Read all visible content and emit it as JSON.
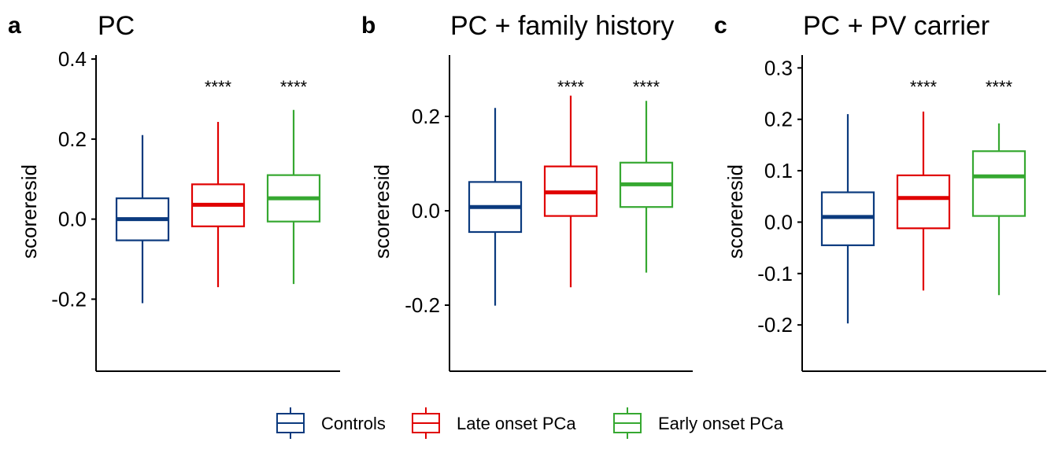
{
  "figure": {
    "colors": {
      "controls": "#0b3a7e",
      "late": "#e00000",
      "early": "#36a831",
      "axis": "#000000"
    },
    "legend": {
      "position": "bottom",
      "items": [
        {
          "label": "Controls",
          "color": "#0b3a7e"
        },
        {
          "label": "Late onset PCa",
          "color": "#e00000"
        },
        {
          "label": "Early onset PCa",
          "color": "#36a831"
        }
      ]
    }
  },
  "chart_data": [
    {
      "type": "box",
      "panel_label": "a",
      "title": "PC",
      "xlabel": "",
      "ylabel": "scoreresid",
      "ylim": [
        -0.38,
        0.41
      ],
      "yticks": [
        {
          "value": -0.2,
          "label": "-0.2"
        },
        {
          "value": 0.0,
          "label": "0.0"
        },
        {
          "value": 0.2,
          "label": "0.2"
        },
        {
          "value": 0.4,
          "label": "0.4"
        }
      ],
      "series": [
        {
          "name": "Controls",
          "min": -0.21,
          "q1": -0.053,
          "median": 0.0,
          "q3": 0.052,
          "max": 0.21,
          "significance": ""
        },
        {
          "name": "Late onset PCa",
          "min": -0.17,
          "q1": -0.018,
          "median": 0.036,
          "q3": 0.087,
          "max": 0.243,
          "significance": "****"
        },
        {
          "name": "Early onset PCa",
          "min": -0.162,
          "q1": -0.006,
          "median": 0.052,
          "q3": 0.11,
          "max": 0.273,
          "significance": "****"
        }
      ]
    },
    {
      "type": "box",
      "panel_label": "b",
      "title": "PC + family history",
      "xlabel": "",
      "ylabel": "scoreresid",
      "ylim": [
        -0.34,
        0.33
      ],
      "yticks": [
        {
          "value": -0.2,
          "label": "-0.2"
        },
        {
          "value": 0.0,
          "label": "0.0"
        },
        {
          "value": 0.2,
          "label": "0.2"
        }
      ],
      "series": [
        {
          "name": "Controls",
          "min": -0.201,
          "q1": -0.045,
          "median": 0.008,
          "q3": 0.061,
          "max": 0.218,
          "significance": ""
        },
        {
          "name": "Late onset PCa",
          "min": -0.162,
          "q1": -0.011,
          "median": 0.039,
          "q3": 0.094,
          "max": 0.244,
          "significance": "****"
        },
        {
          "name": "Early onset PCa",
          "min": -0.131,
          "q1": 0.008,
          "median": 0.056,
          "q3": 0.102,
          "max": 0.233,
          "significance": "****"
        }
      ]
    },
    {
      "type": "box",
      "panel_label": "c",
      "title": "PC + PV carrier",
      "xlabel": "",
      "ylabel": "scoreresid",
      "ylim": [
        -0.29,
        0.325
      ],
      "yticks": [
        {
          "value": -0.2,
          "label": "-0.2"
        },
        {
          "value": -0.1,
          "label": "-0.1"
        },
        {
          "value": 0.0,
          "label": "0.0"
        },
        {
          "value": 0.1,
          "label": "0.1"
        },
        {
          "value": 0.2,
          "label": "0.2"
        },
        {
          "value": 0.3,
          "label": "0.3"
        }
      ],
      "series": [
        {
          "name": "Controls",
          "min": -0.197,
          "q1": -0.045,
          "median": 0.01,
          "q3": 0.058,
          "max": 0.21,
          "significance": ""
        },
        {
          "name": "Late onset PCa",
          "min": -0.133,
          "q1": -0.012,
          "median": 0.047,
          "q3": 0.091,
          "max": 0.215,
          "significance": "****"
        },
        {
          "name": "Early onset PCa",
          "min": -0.142,
          "q1": 0.012,
          "median": 0.089,
          "q3": 0.138,
          "max": 0.192,
          "significance": "****"
        }
      ]
    }
  ]
}
